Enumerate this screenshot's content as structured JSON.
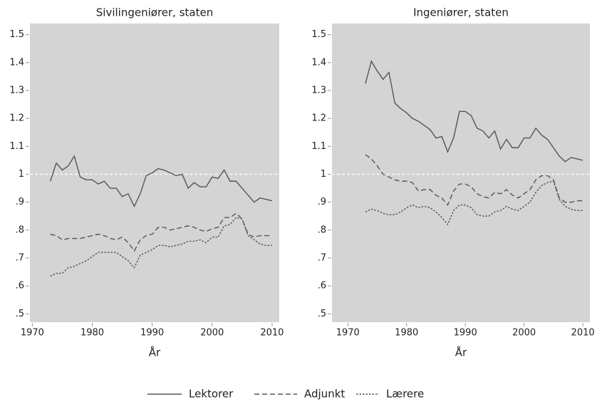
{
  "chart_data": [
    {
      "type": "line",
      "title": "Sivilingeniører, staten",
      "xlabel": "År",
      "x": [
        1973,
        1974,
        1975,
        1976,
        1977,
        1978,
        1979,
        1980,
        1981,
        1982,
        1983,
        1984,
        1985,
        1986,
        1987,
        1988,
        1989,
        1990,
        1991,
        1992,
        1993,
        1994,
        1995,
        1996,
        1997,
        1998,
        1999,
        2000,
        2001,
        2002,
        2003,
        2004,
        2005,
        2006,
        2007,
        2008,
        2009,
        2010
      ],
      "series": [
        {
          "name": "Lektorer",
          "color": "#555555",
          "style": "solid",
          "values": [
            0.975,
            1.04,
            1.015,
            1.03,
            1.065,
            0.99,
            0.98,
            0.98,
            0.965,
            0.975,
            0.95,
            0.95,
            0.92,
            0.93,
            0.885,
            0.93,
            0.995,
            1.005,
            1.02,
            1.015,
            1.005,
            0.995,
            1.0,
            0.95,
            0.97,
            0.955,
            0.955,
            0.99,
            0.985,
            1.015,
            0.975,
            0.975,
            0.95,
            0.925,
            0.9,
            0.915,
            0.91,
            0.905
          ]
        },
        {
          "name": "Adjunkt",
          "color": "#555555",
          "style": "dashed",
          "values": [
            0.785,
            0.78,
            0.765,
            0.77,
            0.77,
            0.77,
            0.775,
            0.78,
            0.785,
            0.78,
            0.77,
            0.765,
            0.775,
            0.755,
            0.725,
            0.765,
            0.78,
            0.785,
            0.81,
            0.81,
            0.8,
            0.805,
            0.81,
            0.815,
            0.81,
            0.8,
            0.795,
            0.805,
            0.81,
            0.845,
            0.845,
            0.86,
            0.84,
            0.785,
            0.775,
            0.78,
            0.78,
            0.78
          ]
        },
        {
          "name": "Lærere",
          "color": "#555555",
          "style": "dotted",
          "values": [
            0.635,
            0.645,
            0.645,
            0.665,
            0.67,
            0.68,
            0.69,
            0.705,
            0.72,
            0.72,
            0.72,
            0.72,
            0.705,
            0.69,
            0.665,
            0.71,
            0.72,
            0.73,
            0.745,
            0.745,
            0.74,
            0.745,
            0.75,
            0.76,
            0.76,
            0.765,
            0.755,
            0.775,
            0.775,
            0.815,
            0.82,
            0.845,
            0.84,
            0.78,
            0.765,
            0.75,
            0.745,
            0.745
          ]
        }
      ],
      "xlim": [
        1969.6,
        2011.2
      ],
      "xticks": [
        1970,
        1980,
        1990,
        2000,
        2010
      ],
      "ylim": [
        0.47,
        1.54
      ],
      "yticks": [
        {
          "value": 0.5,
          "label": ".5"
        },
        {
          "value": 0.6,
          "label": ".6"
        },
        {
          "value": 0.7,
          "label": ".7"
        },
        {
          "value": 0.8,
          "label": ".8"
        },
        {
          "value": 0.9,
          "label": ".9"
        },
        1,
        1.1,
        1.2,
        1.3,
        1.4,
        1.5
      ],
      "reference_line": 1,
      "background": "#d4d4d4"
    },
    {
      "type": "line",
      "title": "Ingeniører, staten",
      "xlabel": "År",
      "x": [
        1973,
        1974,
        1975,
        1976,
        1977,
        1978,
        1979,
        1980,
        1981,
        1982,
        1983,
        1984,
        1985,
        1986,
        1987,
        1988,
        1989,
        1990,
        1991,
        1992,
        1993,
        1994,
        1995,
        1996,
        1997,
        1998,
        1999,
        2000,
        2001,
        2002,
        2003,
        2004,
        2005,
        2006,
        2007,
        2008,
        2009,
        2010
      ],
      "series": [
        {
          "name": "Lektorer",
          "color": "#555555",
          "style": "solid",
          "values": [
            1.325,
            1.405,
            1.37,
            1.34,
            1.365,
            1.255,
            1.235,
            1.22,
            1.2,
            1.19,
            1.175,
            1.16,
            1.13,
            1.135,
            1.08,
            1.13,
            1.225,
            1.225,
            1.21,
            1.165,
            1.155,
            1.13,
            1.155,
            1.09,
            1.125,
            1.095,
            1.095,
            1.13,
            1.13,
            1.165,
            1.14,
            1.125,
            1.095,
            1.065,
            1.045,
            1.06,
            1.055,
            1.05
          ]
        },
        {
          "name": "Adjunkt",
          "color": "#555555",
          "style": "dashed",
          "values": [
            1.07,
            1.055,
            1.03,
            1.0,
            0.99,
            0.98,
            0.975,
            0.975,
            0.97,
            0.94,
            0.945,
            0.945,
            0.925,
            0.915,
            0.89,
            0.94,
            0.965,
            0.965,
            0.955,
            0.93,
            0.92,
            0.915,
            0.935,
            0.93,
            0.945,
            0.925,
            0.915,
            0.93,
            0.945,
            0.98,
            0.995,
            0.995,
            0.98,
            0.915,
            0.9,
            0.9,
            0.905,
            0.905
          ]
        },
        {
          "name": "Lærere",
          "color": "#555555",
          "style": "dotted",
          "values": [
            0.865,
            0.875,
            0.87,
            0.86,
            0.855,
            0.855,
            0.865,
            0.88,
            0.89,
            0.88,
            0.885,
            0.88,
            0.865,
            0.845,
            0.82,
            0.87,
            0.89,
            0.89,
            0.88,
            0.855,
            0.85,
            0.85,
            0.865,
            0.87,
            0.885,
            0.875,
            0.87,
            0.885,
            0.9,
            0.935,
            0.96,
            0.97,
            0.975,
            0.91,
            0.885,
            0.875,
            0.87,
            0.87
          ]
        }
      ],
      "xlim": [
        1967.3,
        2011.2
      ],
      "xticks": [
        1970,
        1980,
        1990,
        2000,
        2010
      ],
      "ylim": [
        0.47,
        1.54
      ],
      "yticks": [
        {
          "value": 0.5,
          "label": ".5"
        },
        {
          "value": 0.6,
          "label": ".6"
        },
        {
          "value": 0.7,
          "label": ".7"
        },
        {
          "value": 0.8,
          "label": ".8"
        },
        {
          "value": 0.9,
          "label": ".9"
        },
        1,
        1.1,
        1.2,
        1.3,
        1.4,
        1.5
      ],
      "reference_line": 1,
      "background": "#d4d4d4"
    }
  ]
}
